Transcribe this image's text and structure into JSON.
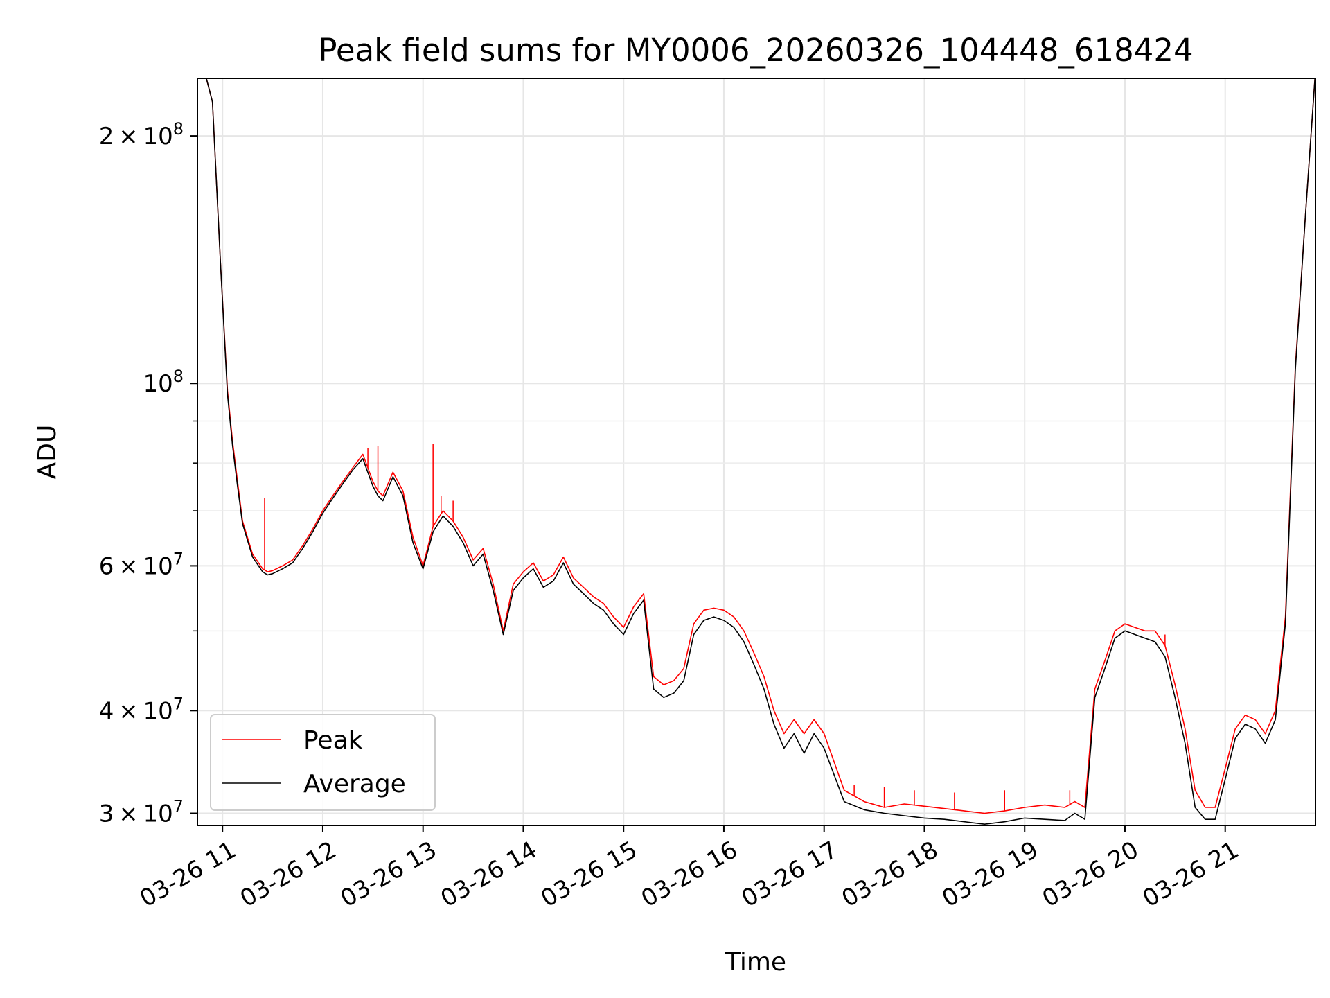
{
  "chart_data": {
    "type": "line",
    "title": "Peak field sums for MY0006_20260326_104448_618424",
    "xlabel": "Time",
    "ylabel": "ADU",
    "yscale": "log",
    "xlim": [
      10.75,
      21.9
    ],
    "ylim": [
      29000000,
      235000000
    ],
    "grid": true,
    "legend": {
      "location": "lower-left",
      "entries": [
        "Peak",
        "Average"
      ]
    },
    "x_ticks": [
      {
        "value": 11,
        "label": "03-26 11"
      },
      {
        "value": 12,
        "label": "03-26 12"
      },
      {
        "value": 13,
        "label": "03-26 13"
      },
      {
        "value": 14,
        "label": "03-26 14"
      },
      {
        "value": 15,
        "label": "03-26 15"
      },
      {
        "value": 16,
        "label": "03-26 16"
      },
      {
        "value": 17,
        "label": "03-26 17"
      },
      {
        "value": 18,
        "label": "03-26 18"
      },
      {
        "value": 19,
        "label": "03-26 19"
      },
      {
        "value": 20,
        "label": "03-26 20"
      },
      {
        "value": 21,
        "label": "03-26 21"
      }
    ],
    "y_major_ticks": [
      {
        "value": 30000000,
        "mantissa": "3",
        "exponent": "7"
      },
      {
        "value": 40000000,
        "mantissa": "4",
        "exponent": "7"
      },
      {
        "value": 60000000,
        "mantissa": "6",
        "exponent": "7"
      },
      {
        "value": 100000000,
        "mantissa": "",
        "exponent": "8"
      },
      {
        "value": 200000000,
        "mantissa": "2",
        "exponent": "8"
      }
    ],
    "y_minor_ticks": [
      50000000,
      70000000,
      80000000,
      90000000
    ],
    "series": [
      {
        "name": "Peak",
        "color": "#ff0000",
        "x": [
          10.75,
          10.82,
          10.9,
          10.98,
          11.05,
          11.1,
          11.15,
          11.2,
          11.3,
          11.4,
          11.45,
          11.5,
          11.6,
          11.7,
          11.8,
          11.9,
          12.0,
          12.1,
          12.2,
          12.3,
          12.4,
          12.5,
          12.55,
          12.6,
          12.7,
          12.8,
          12.9,
          13.0,
          13.1,
          13.2,
          13.3,
          13.4,
          13.5,
          13.6,
          13.7,
          13.8,
          13.9,
          14.0,
          14.1,
          14.2,
          14.3,
          14.4,
          14.5,
          14.6,
          14.7,
          14.8,
          14.9,
          15.0,
          15.1,
          15.2,
          15.3,
          15.4,
          15.5,
          15.6,
          15.7,
          15.8,
          15.9,
          16.0,
          16.1,
          16.2,
          16.3,
          16.4,
          16.5,
          16.6,
          16.7,
          16.8,
          16.9,
          17.0,
          17.2,
          17.4,
          17.6,
          17.8,
          18.0,
          18.2,
          18.4,
          18.6,
          18.8,
          19.0,
          19.2,
          19.4,
          19.5,
          19.6,
          19.7,
          19.8,
          19.9,
          20.0,
          20.1,
          20.2,
          20.3,
          20.4,
          20.5,
          20.6,
          20.7,
          20.8,
          20.9,
          21.0,
          21.1,
          21.2,
          21.3,
          21.4,
          21.5,
          21.6,
          21.7,
          21.8,
          21.9
        ],
        "y": [
          240000000,
          240000000,
          220000000,
          140000000,
          98000000,
          85000000,
          76000000,
          68000000,
          62000000,
          59500000,
          59000000,
          59200000,
          60000000,
          61000000,
          63500000,
          66500000,
          70000000,
          73000000,
          76000000,
          79000000,
          82000000,
          76000000,
          74000000,
          73000000,
          78000000,
          74000000,
          65000000,
          60000000,
          67000000,
          70000000,
          68000000,
          65000000,
          61000000,
          63000000,
          57000000,
          50000000,
          57000000,
          59000000,
          60500000,
          57500000,
          58500000,
          61500000,
          58000000,
          56500000,
          55000000,
          54000000,
          52000000,
          50500000,
          53500000,
          55500000,
          44000000,
          43000000,
          43500000,
          45000000,
          51000000,
          53000000,
          53300000,
          53000000,
          52000000,
          50000000,
          47000000,
          44000000,
          40000000,
          37500000,
          39000000,
          37500000,
          39000000,
          37500000,
          32000000,
          31000000,
          30500000,
          30800000,
          30600000,
          30400000,
          30200000,
          30000000,
          30200000,
          30500000,
          30700000,
          30500000,
          31000000,
          30500000,
          42500000,
          46000000,
          50000000,
          51000000,
          50500000,
          50000000,
          50000000,
          48000000,
          43000000,
          38000000,
          32000000,
          30500000,
          30500000,
          34000000,
          38000000,
          39500000,
          39000000,
          37500000,
          40000000,
          52000000,
          105000000,
          160000000,
          240000000
        ],
        "spikes": [
          {
            "x": 11.42,
            "y": 72500000
          },
          {
            "x": 12.45,
            "y": 83500000
          },
          {
            "x": 12.55,
            "y": 84000000
          },
          {
            "x": 13.1,
            "y": 84500000
          },
          {
            "x": 13.18,
            "y": 73000000
          },
          {
            "x": 13.3,
            "y": 72000000
          },
          {
            "x": 17.3,
            "y": 32500000
          },
          {
            "x": 17.6,
            "y": 32300000
          },
          {
            "x": 17.9,
            "y": 32000000
          },
          {
            "x": 18.3,
            "y": 31800000
          },
          {
            "x": 18.8,
            "y": 32000000
          },
          {
            "x": 19.45,
            "y": 32000000
          },
          {
            "x": 20.4,
            "y": 49500000
          }
        ]
      },
      {
        "name": "Average",
        "color": "#000000",
        "x": [
          10.75,
          10.82,
          10.9,
          10.98,
          11.05,
          11.1,
          11.15,
          11.2,
          11.3,
          11.4,
          11.45,
          11.5,
          11.6,
          11.7,
          11.8,
          11.9,
          12.0,
          12.1,
          12.2,
          12.3,
          12.4,
          12.5,
          12.55,
          12.6,
          12.7,
          12.8,
          12.9,
          13.0,
          13.1,
          13.2,
          13.3,
          13.4,
          13.5,
          13.6,
          13.7,
          13.8,
          13.9,
          14.0,
          14.1,
          14.2,
          14.3,
          14.4,
          14.5,
          14.6,
          14.7,
          14.8,
          14.9,
          15.0,
          15.1,
          15.2,
          15.3,
          15.4,
          15.5,
          15.6,
          15.7,
          15.8,
          15.9,
          16.0,
          16.1,
          16.2,
          16.3,
          16.4,
          16.5,
          16.6,
          16.7,
          16.8,
          16.9,
          17.0,
          17.2,
          17.4,
          17.6,
          17.8,
          18.0,
          18.2,
          18.4,
          18.6,
          18.8,
          19.0,
          19.2,
          19.4,
          19.5,
          19.6,
          19.7,
          19.8,
          19.9,
          20.0,
          20.1,
          20.2,
          20.3,
          20.4,
          20.5,
          20.6,
          20.7,
          20.8,
          20.9,
          21.0,
          21.1,
          21.2,
          21.3,
          21.4,
          21.5,
          21.6,
          21.7,
          21.8,
          21.9
        ],
        "y": [
          240000000,
          240000000,
          220000000,
          140000000,
          97000000,
          84000000,
          75000000,
          67500000,
          61500000,
          59000000,
          58500000,
          58700000,
          59500000,
          60500000,
          63000000,
          66000000,
          69500000,
          72500000,
          75500000,
          78500000,
          81000000,
          75000000,
          73000000,
          72000000,
          77000000,
          73000000,
          64000000,
          59500000,
          66000000,
          69000000,
          67000000,
          64000000,
          60000000,
          62000000,
          56000000,
          49500000,
          56000000,
          58000000,
          59500000,
          56500000,
          57500000,
          60500000,
          57000000,
          55500000,
          54000000,
          53000000,
          51000000,
          49500000,
          52500000,
          54500000,
          42500000,
          41500000,
          42000000,
          43500000,
          49500000,
          51500000,
          52000000,
          51500000,
          50500000,
          48500000,
          45500000,
          42500000,
          38500000,
          36000000,
          37500000,
          35500000,
          37500000,
          36000000,
          31000000,
          30300000,
          30000000,
          29800000,
          29600000,
          29500000,
          29300000,
          29100000,
          29300000,
          29600000,
          29500000,
          29400000,
          30000000,
          29500000,
          41500000,
          45000000,
          49000000,
          50000000,
          49500000,
          49000000,
          48500000,
          46500000,
          41500000,
          36500000,
          30500000,
          29500000,
          29500000,
          33000000,
          37000000,
          38500000,
          38000000,
          36500000,
          39000000,
          51000000,
          104000000,
          160000000,
          240000000
        ]
      }
    ]
  }
}
